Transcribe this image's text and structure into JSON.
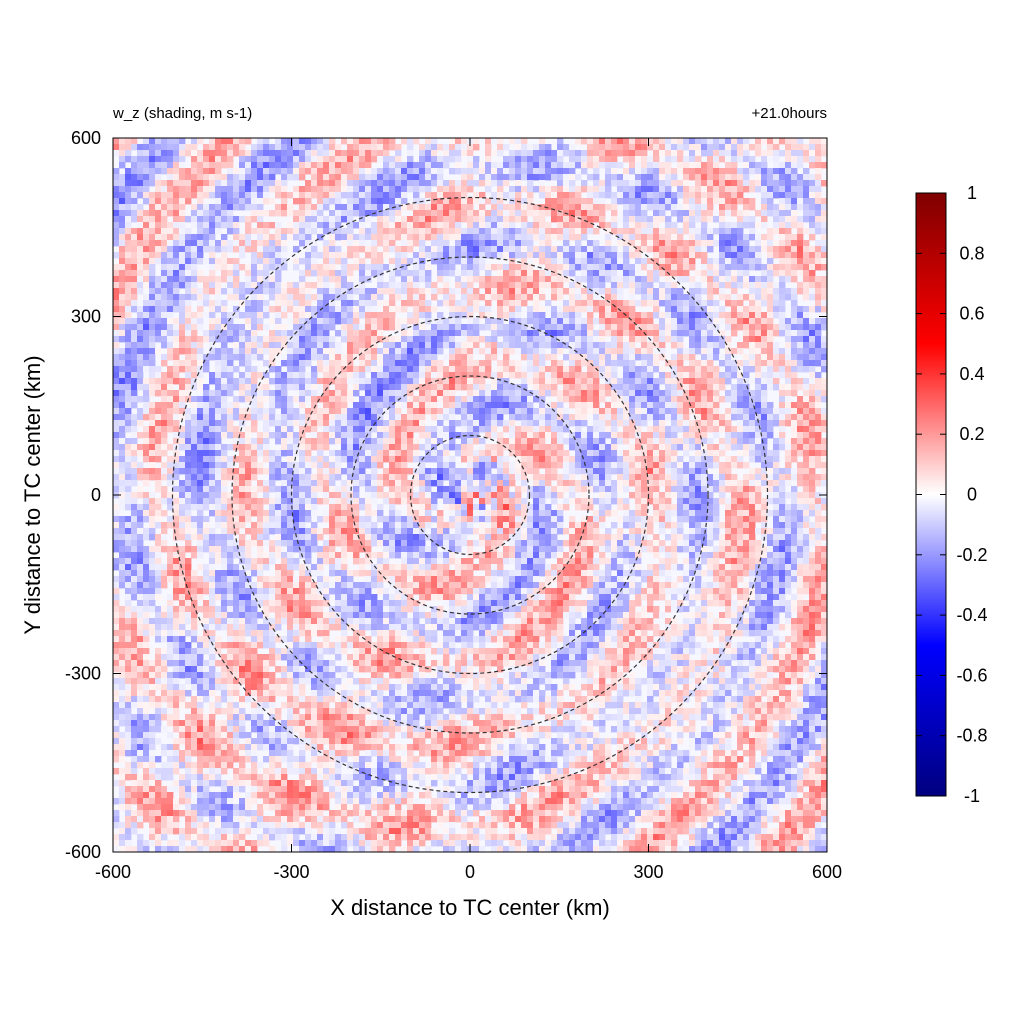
{
  "chart_data": {
    "type": "heatmap",
    "title_left": "w_z (shading, m s-1)",
    "title_right": "+21.0hours",
    "xlabel": "X distance to TC center (km)",
    "ylabel": "Y distance to TC center (km)",
    "xlim": [
      -600,
      600
    ],
    "ylim": [
      -600,
      600
    ],
    "xticks": [
      -600,
      -300,
      0,
      300,
      600
    ],
    "yticks": [
      -600,
      -300,
      0,
      300,
      600
    ],
    "xtick_labels": [
      "-600",
      "-300",
      "0",
      "300",
      "600"
    ],
    "ytick_labels": [
      "-600",
      "-300",
      "0",
      "300",
      "600"
    ],
    "grid": false,
    "colorbar": {
      "range": [
        -1,
        1
      ],
      "ticks": [
        -1,
        -0.8,
        -0.6,
        -0.4,
        -0.2,
        0,
        0.2,
        0.4,
        0.6,
        0.8,
        1
      ],
      "tick_labels": [
        "-1",
        "-0.8",
        "-0.6",
        "-0.4",
        "-0.2",
        "0",
        "0.2",
        "0.4",
        "0.6",
        "0.8",
        "1"
      ],
      "colors": [
        "#00007f",
        "#0000ff",
        "#ffffff",
        "#ff0000",
        "#7f0000"
      ],
      "placement": "right"
    },
    "overlay_circles": {
      "center": [
        0,
        0
      ],
      "radii_km": [
        100,
        200,
        300,
        400,
        500
      ],
      "style": "dashed",
      "color": "#333333"
    },
    "field_description_values": {
      "typical_range": [
        -0.3,
        0.3
      ],
      "max_abs_near_center": 0.5
    }
  }
}
